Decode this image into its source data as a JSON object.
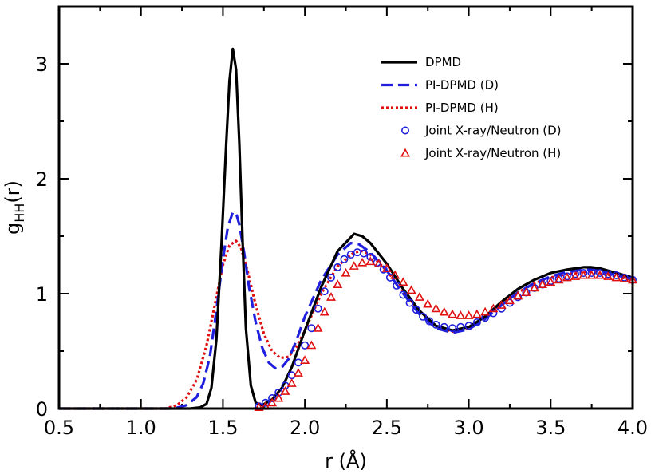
{
  "chart_data": {
    "type": "line",
    "title": "",
    "xlabel": "r (Å)",
    "ylabel": {
      "main": "g",
      "sub": "HH",
      "suffix": "(r)"
    },
    "xlim": [
      0.5,
      4.0
    ],
    "ylim": [
      0,
      3.5
    ],
    "xticks": [
      0.5,
      1.0,
      1.5,
      2.0,
      2.5,
      3.0,
      3.5,
      4.0
    ],
    "xtick_labels": [
      "0.5",
      "1.0",
      "1.5",
      "2.0",
      "2.5",
      "3.0",
      "3.5",
      "4.0"
    ],
    "yticks": [
      0,
      1,
      2,
      3
    ],
    "ytick_labels": [
      "0",
      "1",
      "2",
      "3"
    ],
    "legend_position": "top-right",
    "series": [
      {
        "name": "DPMD",
        "style": "solid",
        "color": "#000000",
        "x": [
          0.5,
          1.3,
          1.36,
          1.4,
          1.43,
          1.46,
          1.49,
          1.52,
          1.54,
          1.56,
          1.58,
          1.6,
          1.62,
          1.64,
          1.67,
          1.7,
          1.74,
          1.8,
          1.86,
          1.92,
          2.0,
          2.1,
          2.2,
          2.3,
          2.35,
          2.4,
          2.5,
          2.6,
          2.7,
          2.8,
          2.9,
          3.0,
          3.1,
          3.2,
          3.3,
          3.4,
          3.5,
          3.6,
          3.7,
          3.75,
          3.8,
          3.9,
          4.0
        ],
        "y": [
          0,
          0,
          0.01,
          0.04,
          0.18,
          0.6,
          1.4,
          2.3,
          2.85,
          3.13,
          2.95,
          2.3,
          1.45,
          0.7,
          0.2,
          0.05,
          0.03,
          0.08,
          0.18,
          0.36,
          0.68,
          1.06,
          1.37,
          1.52,
          1.5,
          1.44,
          1.26,
          1.04,
          0.85,
          0.72,
          0.68,
          0.71,
          0.8,
          0.93,
          1.04,
          1.12,
          1.18,
          1.21,
          1.23,
          1.23,
          1.22,
          1.18,
          1.14
        ]
      },
      {
        "name": "PI-DPMD (D)",
        "style": "dashed",
        "color": "#1f1fdd",
        "x": [
          0.5,
          1.2,
          1.28,
          1.34,
          1.38,
          1.42,
          1.46,
          1.5,
          1.53,
          1.56,
          1.58,
          1.6,
          1.63,
          1.66,
          1.7,
          1.74,
          1.78,
          1.82,
          1.86,
          1.9,
          1.95,
          2.0,
          2.1,
          2.2,
          2.28,
          2.33,
          2.4,
          2.5,
          2.6,
          2.7,
          2.8,
          2.9,
          3.0,
          3.1,
          3.2,
          3.3,
          3.4,
          3.5,
          3.6,
          3.7,
          3.76,
          3.8,
          3.9,
          4.0
        ],
        "y": [
          0,
          0,
          0.03,
          0.1,
          0.22,
          0.45,
          0.85,
          1.3,
          1.58,
          1.71,
          1.7,
          1.6,
          1.35,
          1.05,
          0.75,
          0.53,
          0.4,
          0.35,
          0.36,
          0.43,
          0.6,
          0.8,
          1.12,
          1.34,
          1.44,
          1.43,
          1.36,
          1.2,
          1.0,
          0.82,
          0.7,
          0.66,
          0.69,
          0.78,
          0.9,
          1.01,
          1.09,
          1.15,
          1.19,
          1.21,
          1.21,
          1.2,
          1.16,
          1.13
        ]
      },
      {
        "name": "PI-DPMD (H)",
        "style": "dotted",
        "color": "#e01010",
        "x": [
          0.5,
          1.15,
          1.22,
          1.28,
          1.34,
          1.4,
          1.45,
          1.5,
          1.54,
          1.58,
          1.61,
          1.65,
          1.7,
          1.75,
          1.8,
          1.85,
          1.9,
          1.95,
          2.0,
          2.1,
          2.2,
          2.3,
          2.35,
          2.4,
          2.5,
          2.6,
          2.7,
          2.8,
          2.9,
          3.0,
          3.1,
          3.2,
          3.3,
          3.4,
          3.5,
          3.6,
          3.7,
          3.76,
          3.8,
          3.9,
          4.0
        ],
        "y": [
          0,
          0,
          0.03,
          0.1,
          0.25,
          0.55,
          0.9,
          1.25,
          1.42,
          1.46,
          1.4,
          1.2,
          0.9,
          0.65,
          0.5,
          0.44,
          0.45,
          0.54,
          0.68,
          1.0,
          1.24,
          1.36,
          1.37,
          1.34,
          1.2,
          1.02,
          0.85,
          0.72,
          0.67,
          0.7,
          0.79,
          0.91,
          1.01,
          1.09,
          1.14,
          1.17,
          1.19,
          1.19,
          1.18,
          1.15,
          1.12
        ]
      },
      {
        "name": "Joint X-ray/Neutron (D)",
        "style": "marker-circle",
        "color": "#1f1fdd",
        "x": [
          1.72,
          1.76,
          1.8,
          1.84,
          1.88,
          1.92,
          1.96,
          2.0,
          2.04,
          2.08,
          2.12,
          2.16,
          2.2,
          2.24,
          2.28,
          2.32,
          2.36,
          2.4,
          2.44,
          2.48,
          2.52,
          2.56,
          2.6,
          2.64,
          2.68,
          2.72,
          2.76,
          2.8,
          2.85,
          2.9,
          2.95,
          3.0,
          3.05,
          3.1,
          3.15,
          3.2,
          3.25,
          3.3,
          3.35,
          3.4,
          3.45,
          3.5,
          3.55,
          3.6,
          3.65,
          3.7,
          3.75,
          3.8,
          3.85,
          3.9,
          3.95,
          4.0
        ],
        "y": [
          0.02,
          0.05,
          0.09,
          0.14,
          0.2,
          0.29,
          0.4,
          0.55,
          0.7,
          0.87,
          1.02,
          1.14,
          1.23,
          1.3,
          1.34,
          1.36,
          1.35,
          1.32,
          1.27,
          1.21,
          1.14,
          1.07,
          0.99,
          0.92,
          0.86,
          0.8,
          0.76,
          0.73,
          0.71,
          0.7,
          0.71,
          0.72,
          0.75,
          0.79,
          0.83,
          0.87,
          0.92,
          0.97,
          1.01,
          1.05,
          1.08,
          1.11,
          1.13,
          1.15,
          1.17,
          1.18,
          1.18,
          1.18,
          1.17,
          1.16,
          1.14,
          1.12
        ]
      },
      {
        "name": "Joint X-ray/Neutron (H)",
        "style": "marker-triangle",
        "color": "#e01010",
        "x": [
          1.72,
          1.76,
          1.8,
          1.84,
          1.88,
          1.92,
          1.96,
          2.0,
          2.04,
          2.08,
          2.12,
          2.16,
          2.2,
          2.25,
          2.3,
          2.35,
          2.4,
          2.45,
          2.5,
          2.55,
          2.6,
          2.65,
          2.7,
          2.75,
          2.8,
          2.85,
          2.9,
          2.95,
          3.0,
          3.05,
          3.1,
          3.15,
          3.2,
          3.25,
          3.3,
          3.35,
          3.4,
          3.45,
          3.5,
          3.55,
          3.6,
          3.65,
          3.7,
          3.75,
          3.8,
          3.85,
          3.9,
          3.95,
          4.0
        ],
        "y": [
          0.01,
          0.02,
          0.05,
          0.09,
          0.15,
          0.22,
          0.31,
          0.42,
          0.55,
          0.7,
          0.84,
          0.97,
          1.08,
          1.18,
          1.24,
          1.27,
          1.28,
          1.26,
          1.22,
          1.16,
          1.1,
          1.03,
          0.97,
          0.91,
          0.87,
          0.84,
          0.82,
          0.81,
          0.81,
          0.82,
          0.84,
          0.87,
          0.9,
          0.94,
          0.98,
          1.01,
          1.05,
          1.08,
          1.1,
          1.12,
          1.14,
          1.15,
          1.16,
          1.16,
          1.16,
          1.15,
          1.14,
          1.13,
          1.12
        ]
      }
    ]
  }
}
